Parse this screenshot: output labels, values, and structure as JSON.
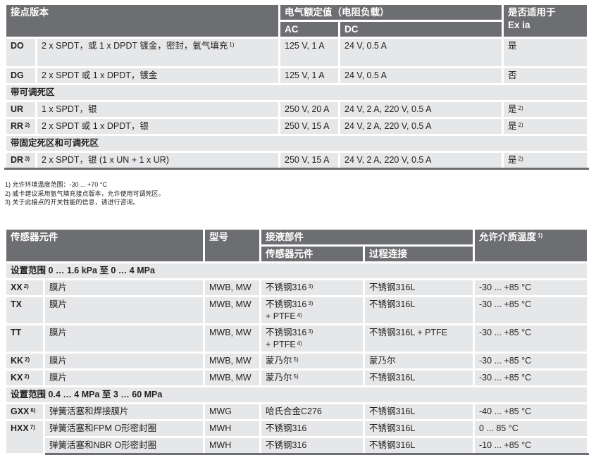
{
  "table1": {
    "headers": {
      "contact": "接点版本",
      "rating": "电气额定值（电阻负载）",
      "ac": "AC",
      "dc": "DC",
      "ex_line1": "是否适用于",
      "ex_line2": "Ex ia"
    },
    "rows": [
      {
        "type": "row",
        "code": "DO",
        "code_sup": "",
        "desc": "2 x SPDT，或 1 x DPDT 镀金，密封，氩气填充",
        "desc_sup": "1)",
        "ac": "125 V, 1 A",
        "dc": "24 V, 0.5 A",
        "ex": "是",
        "ex_sup": "",
        "tall": true
      },
      {
        "type": "row",
        "code": "DG",
        "code_sup": "",
        "desc": "2 x SPDT 或 1 x DPDT，镀金",
        "desc_sup": "",
        "ac": "125 V, 1 A",
        "dc": "24 V, 0.5 A",
        "ex": "否",
        "ex_sup": ""
      },
      {
        "type": "section",
        "label": "带可调死区"
      },
      {
        "type": "row",
        "code": "UR",
        "code_sup": "",
        "desc": "1 x SPDT，银",
        "desc_sup": "",
        "ac": "250 V, 20 A",
        "dc": "24 V, 2 A, 220 V, 0.5 A",
        "ex": "是",
        "ex_sup": "2)"
      },
      {
        "type": "row",
        "code": "RR",
        "code_sup": "3)",
        "desc": "2 x SPDT 或 1 x DPDT，银",
        "desc_sup": "",
        "ac": "250 V, 15 A",
        "dc": "24 V, 2 A, 220 V, 0.5 A",
        "ex": "是",
        "ex_sup": "2)"
      },
      {
        "type": "section",
        "label": "带固定死区和可调死区"
      },
      {
        "type": "row",
        "code": "DR",
        "code_sup": "3)",
        "desc": "2 x SPDT，银 (1 x UN + 1 x UR)",
        "desc_sup": "",
        "ac": "250 V, 15 A",
        "dc": "24 V, 2 A, 220 V, 0.5 A",
        "ex": "是",
        "ex_sup": "2)"
      }
    ],
    "footnotes": [
      "1) 允许环境温度范围：-30 ... +70 °C",
      "2) 威卡建议采用氩气填充接点版本，允许使用可调死区。",
      "3) 关于此接点的开关性能的信息，请进行咨询。"
    ]
  },
  "table2": {
    "headers": {
      "sensor": "传感器元件",
      "model": "型号",
      "wetted": "接液部件",
      "wetted_sensor": "传感器元件",
      "process": "过程连接",
      "temp": "允许介质温度",
      "temp_sup": "1)"
    },
    "rows": [
      {
        "type": "section",
        "label": "设置范围 0 … 1.6 kPa 至 0 … 4 MPa"
      },
      {
        "type": "row",
        "code": "XX",
        "code_sup": "2)",
        "desc": "膜片",
        "model": "MWB, MW",
        "sensor": "不锈钢316",
        "sensor_sup": "3)",
        "sensor2": "",
        "sensor2_sup": "",
        "process": "不锈钢316L",
        "temp": "-30 ... +85 °C"
      },
      {
        "type": "row",
        "code": "TX",
        "code_sup": "",
        "desc": "膜片",
        "model": "MWB, MW",
        "sensor": "不锈钢316",
        "sensor_sup": "3)",
        "sensor2": "+ PTFE",
        "sensor2_sup": "4)",
        "process": "不锈钢316L",
        "temp": "-30 ... +85 °C"
      },
      {
        "type": "row",
        "code": "TT",
        "code_sup": "",
        "desc": "膜片",
        "model": "MWB, MW",
        "sensor": "不锈钢316",
        "sensor_sup": "3)",
        "sensor2": "+ PTFE",
        "sensor2_sup": "4)",
        "process": "不锈钢316L + PTFE",
        "temp": "-30 ... +85 °C"
      },
      {
        "type": "row",
        "code": "KK",
        "code_sup": "2)",
        "desc": "膜片",
        "model": "MWB, MW",
        "sensor": "蒙乃尔",
        "sensor_sup": "5)",
        "sensor2": "",
        "sensor2_sup": "",
        "process": "蒙乃尔",
        "temp": "-30 ... +85 °C"
      },
      {
        "type": "row",
        "code": "KX",
        "code_sup": "2)",
        "desc": "膜片",
        "model": "MWB, MW",
        "sensor": "蒙乃尔",
        "sensor_sup": "5)",
        "sensor2": "",
        "sensor2_sup": "",
        "process": "不锈钢316L",
        "temp": "-30 ... +85 °C"
      },
      {
        "type": "section",
        "label": "设置范围 0.4 … 4 MPa 至 3 … 60 MPa"
      },
      {
        "type": "row",
        "code": "GXX",
        "code_sup": "6)",
        "desc": "弹簧活塞和焊接膜片",
        "model": "MWG",
        "sensor": "哈氏合金C276",
        "sensor_sup": "",
        "sensor2": "",
        "sensor2_sup": "",
        "process": "不锈钢316L",
        "temp": "-40 ... +85 °C"
      },
      {
        "type": "row",
        "code": "HXX",
        "code_sup": "7)",
        "rowspan": 2,
        "desc": "弹簧活塞和FPM O形密封圈",
        "model": "MWH",
        "sensor": "不锈钢316",
        "sensor_sup": "",
        "sensor2": "",
        "sensor2_sup": "",
        "process": "不锈钢316L",
        "temp": "0 ... 85 °C"
      },
      {
        "type": "row",
        "no_code": true,
        "desc": "弹簧活塞和NBR O形密封圈",
        "model": "MWH",
        "sensor": "不锈钢316",
        "sensor_sup": "",
        "sensor2": "",
        "sensor2_sup": "",
        "process": "不锈钢316L",
        "temp": "-10 ... +85 °C"
      }
    ]
  }
}
